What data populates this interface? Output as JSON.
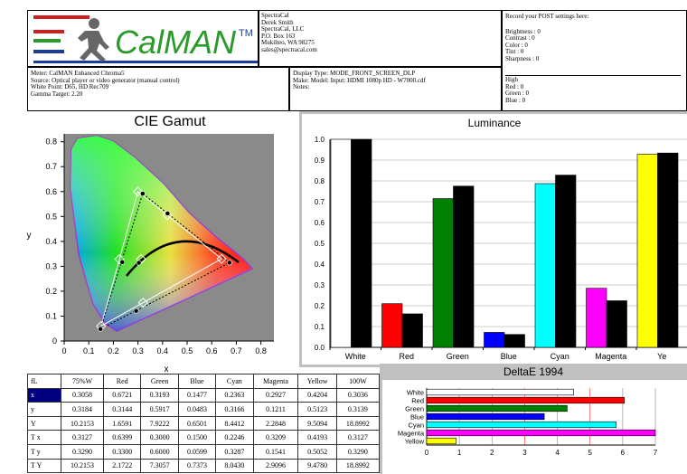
{
  "header": {
    "logo_text": "CalMAN",
    "logo_tm": "TM",
    "company": [
      "SpectraCal",
      "Derek Smith",
      "SpectraCal, LLC",
      "P.O. Box 163",
      "Mukilteo, WA 98275",
      "sales@spectracal.com"
    ],
    "post_title": "Record your POST settings here:",
    "post_settings": [
      "Brightness : 0",
      "Contrast   : 0",
      "Color      : 0",
      "Tint       : 0",
      "Sharpness : 0"
    ],
    "high_title": "High",
    "high_settings": [
      "Red   : 0",
      "Green : 0",
      "Blue  : 0"
    ],
    "meter_info": [
      "Meter: CalMAN Enhanced Chroma5",
      "Source: Optical player or video generator (manual control)",
      "White Point: D65, HD Rec709",
      "Gamma Target: 2.20"
    ],
    "display_info": [
      "Display Type: MODE_FRONT_SCREEN_DLP",
      "Make: Model: Input: HDMI 1080p HD    -    W7000.cdf",
      "Notes:"
    ]
  },
  "cie": {
    "title": "CIE Gamut",
    "xlabel": "x",
    "ylabel": "y",
    "xticks": [
      "0",
      "0.1",
      "0.2",
      "0.3",
      "0.4",
      "0.5",
      "0.6",
      "0.7",
      "0.8"
    ],
    "yticks": [
      "0",
      "0.1",
      "0.2",
      "0.3",
      "0.4",
      "0.5",
      "0.6",
      "0.7",
      "0.8"
    ]
  },
  "chart_data": [
    {
      "type": "bar",
      "title": "Luminance",
      "categories": [
        "White",
        "Red",
        "Green",
        "Blue",
        "Cyan",
        "Magenta",
        "Yellow"
      ],
      "category_labels": [
        "White",
        "Red",
        "Green",
        "Blue",
        "Cyan",
        "Magenta",
        "Ye"
      ],
      "ylim": [
        0,
        1.0
      ],
      "yticks": [
        "0.0",
        "0.1",
        "0.2",
        "0.3",
        "0.4",
        "0.5",
        "0.6",
        "0.7",
        "0.8",
        "0.9",
        "1.0"
      ],
      "series": [
        {
          "values": [
            1.0,
            0.21,
            0.715,
            0.072,
            0.787,
            0.284,
            0.928
          ],
          "colors": [
            "#ffffff",
            "#ff0000",
            "#008000",
            "#0000ff",
            "#00ffff",
            "#ff00ff",
            "#ffff00"
          ]
        },
        {
          "values": [
            1.0,
            0.161,
            0.775,
            0.062,
            0.828,
            0.224,
            0.934
          ],
          "colors": [
            "#000000",
            "#000000",
            "#000000",
            "#000000",
            "#000000",
            "#000000",
            "#000000"
          ]
        }
      ]
    },
    {
      "type": "bar",
      "orientation": "horizontal",
      "title": "DeltaE 1994",
      "categories": [
        "White",
        "Red",
        "Green",
        "Blue",
        "Cyan",
        "Magenta",
        "Yellow"
      ],
      "values": [
        4.5,
        6.05,
        4.3,
        3.6,
        5.8,
        7.0,
        0.9
      ],
      "colors": [
        "#ffffff",
        "#ff0000",
        "#008000",
        "#0000ff",
        "#00ffff",
        "#ff00ff",
        "#ffff00"
      ],
      "xlim": [
        0,
        7
      ],
      "xticks": [
        "0",
        "1",
        "2",
        "3",
        "4",
        "5",
        "6",
        "7"
      ]
    },
    {
      "type": "scatter",
      "title": "CIE Gamut",
      "xlabel": "x",
      "ylabel": "y",
      "xlim": [
        0,
        0.8
      ],
      "ylim": [
        0,
        0.8
      ],
      "series": [
        {
          "x": [
            0.64,
            0.3,
            0.15,
            0.3127
          ],
          "y": [
            0.33,
            0.6,
            0.06,
            0.329
          ],
          "marker": "diamond"
        },
        {
          "x": [
            0.6721,
            0.3193,
            0.1477,
            0.2363,
            0.2927,
            0.4204,
            0.3036
          ],
          "y": [
            0.3144,
            0.5917,
            0.0483,
            0.3166,
            0.1211,
            0.5123,
            0.3139
          ],
          "marker": "circle"
        }
      ]
    }
  ],
  "table": {
    "headers": [
      "fL",
      "75%W",
      "Red",
      "Green",
      "Blue",
      "Cyan",
      "Magenta",
      "Yellow",
      "100W"
    ],
    "rows": [
      [
        "x",
        "0.3058",
        "0.6721",
        "0.3193",
        "0.1477",
        "0.2363",
        "0.2927",
        "0.4204",
        "0.3036"
      ],
      [
        "y",
        "0.3184",
        "0.3144",
        "0.5917",
        "0.0483",
        "0.3166",
        "0.1211",
        "0.5123",
        "0.3139"
      ],
      [
        "Y",
        "10.2153",
        "1.6591",
        "7.9222",
        "0.6501",
        "8.4412",
        "2.2848",
        "9.5094",
        "18.8992"
      ],
      [
        "T x",
        "0.3127",
        "0.6399",
        "0.3000",
        "0.1500",
        "0.2246",
        "0.3209",
        "0.4193",
        "0.3127"
      ],
      [
        "T y",
        "0.3290",
        "0.3300",
        "0.6000",
        "0.0599",
        "0.3287",
        "0.1541",
        "0.5052",
        "0.3290"
      ],
      [
        "T Y",
        "10.2153",
        "2.1722",
        "7.3057",
        "0.7373",
        "8.0430",
        "2.9096",
        "9.4780",
        "18.8992"
      ]
    ]
  }
}
